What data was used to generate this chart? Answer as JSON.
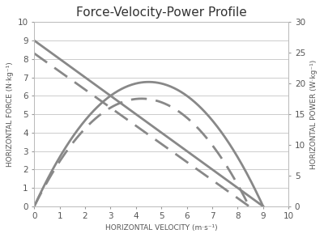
{
  "title": "Force-Velocity-Power Profile",
  "xlabel": "HORIZONTAL VELOCITY (m·s⁻¹)",
  "ylabel_left": "HORIZONTAL FORCE (N·kg⁻¹)",
  "ylabel_right": "HORIZONTAL POWER (W·kg⁻¹)",
  "xlim": [
    0,
    10
  ],
  "ylim_left": [
    0,
    10
  ],
  "ylim_right": [
    0,
    30
  ],
  "xticks": [
    0,
    1,
    2,
    3,
    4,
    5,
    6,
    7,
    8,
    9,
    10
  ],
  "yticks_left": [
    0,
    1,
    2,
    3,
    4,
    5,
    6,
    7,
    8,
    9,
    10
  ],
  "yticks_right": [
    0,
    5,
    10,
    15,
    20,
    25,
    30
  ],
  "solid_fv": {
    "F0": 9.0,
    "V0": 9.0
  },
  "dashed_fv": {
    "F0": 8.3,
    "V0": 8.45
  },
  "line_color": "#888888",
  "line_width": 2.0,
  "dash_pattern": [
    7,
    4
  ],
  "background_color": "#ffffff",
  "grid_color": "#cccccc",
  "title_fontsize": 11,
  "label_fontsize": 6.5,
  "tick_fontsize": 7.5,
  "figsize": [
    4.0,
    2.94
  ],
  "dpi": 100
}
